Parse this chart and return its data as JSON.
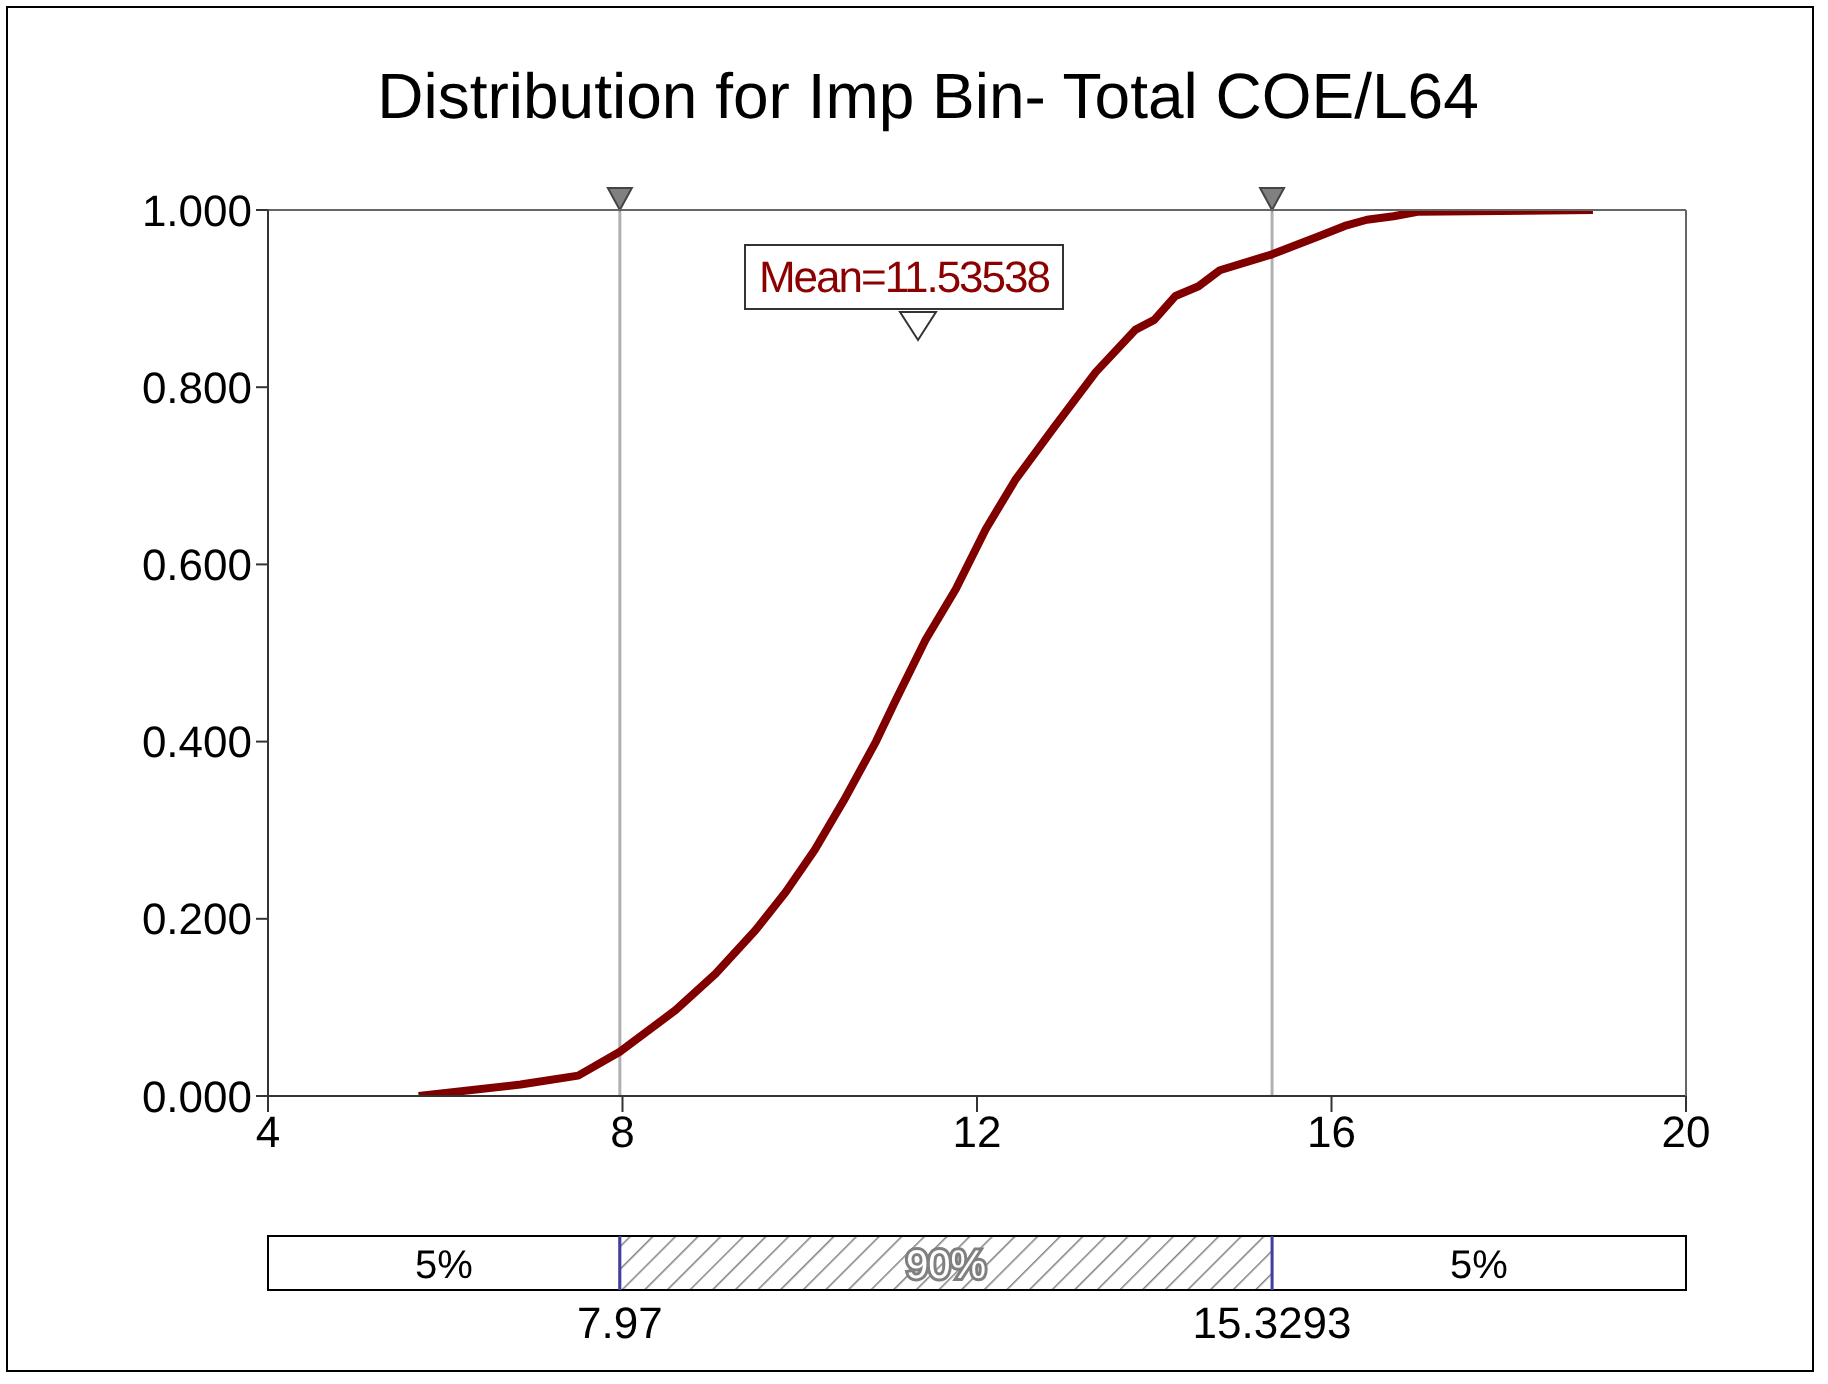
{
  "chart_data": [
    {
      "type": "line",
      "title": "Distribution for Imp Bin- Total COE/L64",
      "x": [
        5.7,
        6.85,
        7.5,
        7.97,
        8.6,
        9.05,
        9.5,
        9.84,
        10.17,
        10.5,
        10.86,
        11.08,
        11.42,
        11.76,
        12.1,
        12.43,
        12.88,
        13.34,
        13.79,
        14.0,
        14.24,
        14.5,
        14.74,
        15.33,
        15.85,
        16.15,
        16.4,
        16.7,
        16.97,
        18.95
      ],
      "series": [
        {
          "color": "#800000",
          "values": [
            0,
            0.013,
            0.023,
            0.05,
            0.097,
            0.138,
            0.187,
            0.23,
            0.278,
            0.334,
            0.4,
            0.446,
            0.515,
            0.572,
            0.64,
            0.695,
            0.756,
            0.817,
            0.865,
            0.876,
            0.903,
            0.914,
            0.932,
            0.95,
            0.97,
            0.982,
            0.989,
            0.993,
            0.998,
            1.0
          ]
        }
      ],
      "xlim": [
        4,
        20
      ],
      "xticks": [
        4,
        8,
        12,
        16,
        20
      ],
      "ylim": [
        0,
        1
      ],
      "yticks": [
        {
          "value": 0,
          "label": "0.000"
        },
        {
          "value": 0.2,
          "label": "0.200"
        },
        {
          "value": 0.4,
          "label": "0.400"
        },
        {
          "value": 0.6,
          "label": "0.600"
        },
        {
          "value": 0.8,
          "label": "0.800"
        },
        {
          "value": 1,
          "label": "1.000"
        }
      ],
      "ref_lines": [
        {
          "axis": "x",
          "value": 7.97,
          "color": "#b0b0b0"
        },
        {
          "axis": "x",
          "value": 15.3293,
          "color": "#b0b0b0"
        }
      ],
      "annotations": [
        "Mean=11.53538"
      ],
      "grid": false,
      "marker": "none",
      "line_style": "solid"
    },
    {
      "type": "other",
      "categories": [
        "5%",
        "90%",
        "5%"
      ],
      "annotations": [
        "7.97",
        "15.3293"
      ]
    }
  ]
}
